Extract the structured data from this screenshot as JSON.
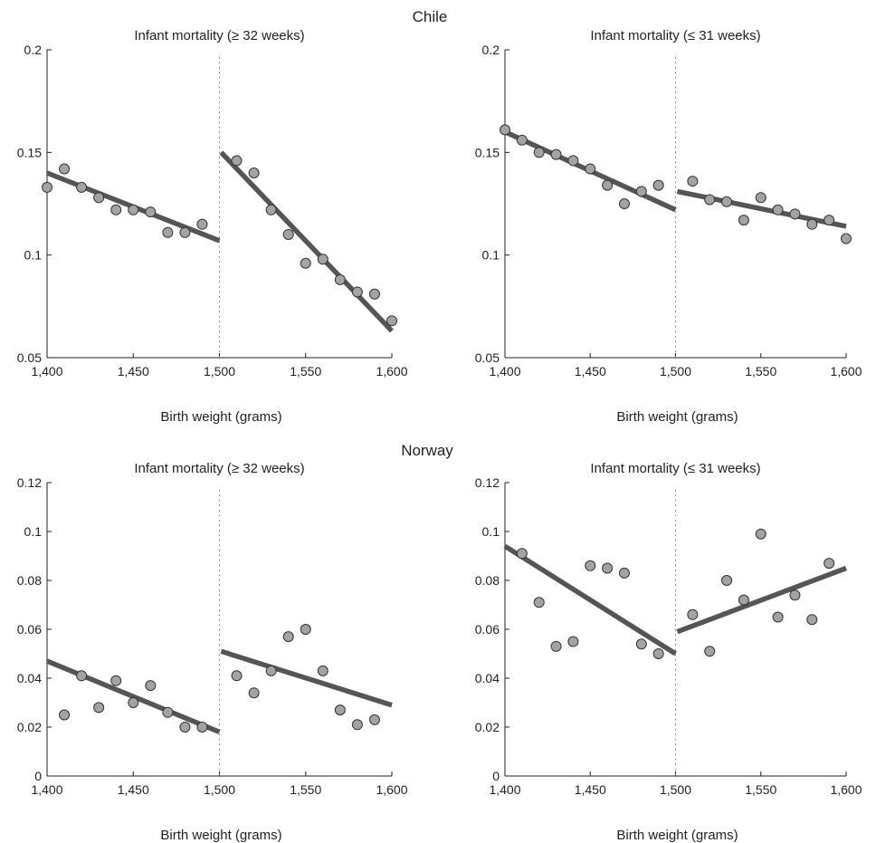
{
  "groups": [
    {
      "title": "Chile"
    },
    {
      "title": "Norway"
    }
  ],
  "chart_data": [
    {
      "type": "scatter",
      "group": "Chile",
      "title": "Infant mortality (≥ 32 weeks)",
      "xlabel": "Birth weight (grams)",
      "xlim": [
        1400,
        1600
      ],
      "ylim": [
        0.05,
        0.2
      ],
      "xticks": [
        1400,
        1450,
        1500,
        1550,
        1600
      ],
      "xtick_labels": [
        "1,400",
        "1,450",
        "1,500",
        "1,550",
        "1,600"
      ],
      "yticks": [
        0.05,
        0.1,
        0.15,
        0.2
      ],
      "ytick_labels": [
        "0.05",
        "0.1",
        "0.15",
        "0.2"
      ],
      "cutoff": 1500,
      "points": {
        "x": [
          1400,
          1410,
          1420,
          1430,
          1440,
          1450,
          1460,
          1470,
          1480,
          1490,
          1510,
          1520,
          1530,
          1540,
          1550,
          1560,
          1570,
          1580,
          1590,
          1600
        ],
        "y": [
          0.133,
          0.142,
          0.133,
          0.128,
          0.122,
          0.122,
          0.121,
          0.111,
          0.111,
          0.115,
          0.146,
          0.14,
          0.122,
          0.11,
          0.096,
          0.098,
          0.088,
          0.082,
          0.081,
          0.068
        ]
      },
      "fits": [
        {
          "x": [
            1400,
            1500
          ],
          "y": [
            0.14,
            0.107
          ]
        },
        {
          "x": [
            1501,
            1600
          ],
          "y": [
            0.15,
            0.063
          ]
        }
      ]
    },
    {
      "type": "scatter",
      "group": "Chile",
      "title": "Infant mortality (≤ 31 weeks)",
      "xlabel": "Birth weight (grams)",
      "xlim": [
        1400,
        1600
      ],
      "ylim": [
        0.05,
        0.2
      ],
      "xticks": [
        1400,
        1450,
        1500,
        1550,
        1600
      ],
      "xtick_labels": [
        "1,400",
        "1,450",
        "1,500",
        "1,550",
        "1,600"
      ],
      "yticks": [
        0.05,
        0.1,
        0.15,
        0.2
      ],
      "ytick_labels": [
        "0.05",
        "0.1",
        "0.15",
        "0.2"
      ],
      "cutoff": 1500,
      "points": {
        "x": [
          1400,
          1410,
          1420,
          1430,
          1440,
          1450,
          1460,
          1470,
          1480,
          1490,
          1510,
          1520,
          1530,
          1540,
          1550,
          1560,
          1570,
          1580,
          1590,
          1600
        ],
        "y": [
          0.161,
          0.156,
          0.15,
          0.149,
          0.146,
          0.142,
          0.134,
          0.125,
          0.131,
          0.134,
          0.136,
          0.127,
          0.126,
          0.117,
          0.128,
          0.122,
          0.12,
          0.115,
          0.117,
          0.108
        ]
      },
      "fits": [
        {
          "x": [
            1400,
            1500
          ],
          "y": [
            0.16,
            0.122
          ]
        },
        {
          "x": [
            1501,
            1600
          ],
          "y": [
            0.131,
            0.114
          ]
        }
      ]
    },
    {
      "type": "scatter",
      "group": "Norway",
      "title": "Infant mortality (≥ 32 weeks)",
      "xlabel": "Birth weight (grams)",
      "xlim": [
        1400,
        1600
      ],
      "ylim": [
        0,
        0.12
      ],
      "xticks": [
        1400,
        1450,
        1500,
        1550,
        1600
      ],
      "xtick_labels": [
        "1,400",
        "1,450",
        "1,500",
        "1,550",
        "1,600"
      ],
      "yticks": [
        0,
        0.02,
        0.04,
        0.06,
        0.08,
        0.1,
        0.12
      ],
      "ytick_labels": [
        "0",
        "0.02",
        "0.04",
        "0.06",
        "0.08",
        "0.1",
        "0.12"
      ],
      "cutoff": 1500,
      "points": {
        "x": [
          1410,
          1420,
          1430,
          1440,
          1450,
          1460,
          1470,
          1480,
          1490,
          1510,
          1520,
          1530,
          1540,
          1550,
          1560,
          1570,
          1580,
          1590
        ],
        "y": [
          0.025,
          0.041,
          0.028,
          0.039,
          0.03,
          0.037,
          0.026,
          0.02,
          0.02,
          0.041,
          0.034,
          0.043,
          0.057,
          0.06,
          0.043,
          0.027,
          0.021,
          0.023
        ]
      },
      "fits": [
        {
          "x": [
            1400,
            1500
          ],
          "y": [
            0.047,
            0.018
          ]
        },
        {
          "x": [
            1501,
            1600
          ],
          "y": [
            0.051,
            0.029
          ]
        }
      ]
    },
    {
      "type": "scatter",
      "group": "Norway",
      "title": "Infant mortality (≤ 31 weeks)",
      "xlabel": "Birth weight (grams)",
      "xlim": [
        1400,
        1600
      ],
      "ylim": [
        0,
        0.12
      ],
      "xticks": [
        1400,
        1450,
        1500,
        1550,
        1600
      ],
      "xtick_labels": [
        "1,400",
        "1,450",
        "1,500",
        "1,550",
        "1,600"
      ],
      "yticks": [
        0,
        0.02,
        0.04,
        0.06,
        0.08,
        0.1,
        0.12
      ],
      "ytick_labels": [
        "0",
        "0.02",
        "0.04",
        "0.06",
        "0.08",
        "0.1",
        "0.12"
      ],
      "cutoff": 1500,
      "points": {
        "x": [
          1410,
          1420,
          1430,
          1440,
          1450,
          1460,
          1470,
          1480,
          1490,
          1510,
          1520,
          1530,
          1540,
          1550,
          1560,
          1570,
          1580,
          1590
        ],
        "y": [
          0.091,
          0.071,
          0.053,
          0.055,
          0.086,
          0.085,
          0.083,
          0.054,
          0.05,
          0.066,
          0.051,
          0.08,
          0.072,
          0.099,
          0.065,
          0.074,
          0.064,
          0.087
        ]
      },
      "fits": [
        {
          "x": [
            1400,
            1500
          ],
          "y": [
            0.094,
            0.05
          ]
        },
        {
          "x": [
            1501,
            1600
          ],
          "y": [
            0.059,
            0.085
          ]
        }
      ]
    }
  ]
}
